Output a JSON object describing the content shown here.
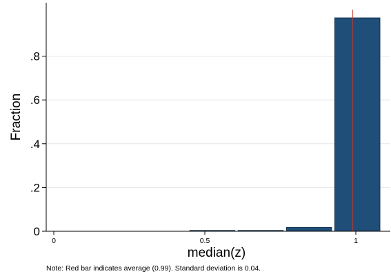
{
  "chart_data": {
    "type": "bar",
    "title": "",
    "xlabel": "median(z)",
    "ylabel": "Fraction",
    "note": "Note: Red bar indicates average (0.99). Standard deviation is 0.04.",
    "xlim": [
      0,
      1.1
    ],
    "ylim": [
      0,
      1.0
    ],
    "x_ticks": [
      {
        "value": 0,
        "label": "0"
      },
      {
        "value": 0.5,
        "label": "0.5"
      },
      {
        "value": 1,
        "label": "1"
      }
    ],
    "y_ticks": [
      {
        "value": 0,
        "label": "0"
      },
      {
        "value": 0.2,
        "label": ".2"
      },
      {
        "value": 0.4,
        "label": ".4"
      },
      {
        "value": 0.6,
        "label": ".6"
      },
      {
        "value": 0.8,
        "label": ".8"
      }
    ],
    "bins": [
      {
        "from": 0.45,
        "to": 0.6,
        "value": 0.004
      },
      {
        "from": 0.61,
        "to": 0.76,
        "value": 0.004
      },
      {
        "from": 0.77,
        "to": 0.92,
        "value": 0.018
      },
      {
        "from": 0.93,
        "to": 1.08,
        "value": 0.975
      }
    ],
    "average_line": 0.99,
    "grid": true,
    "bar_color": "#1f4e79",
    "average_line_color": "#c0392b",
    "grid_color": "#e6e6e6"
  }
}
